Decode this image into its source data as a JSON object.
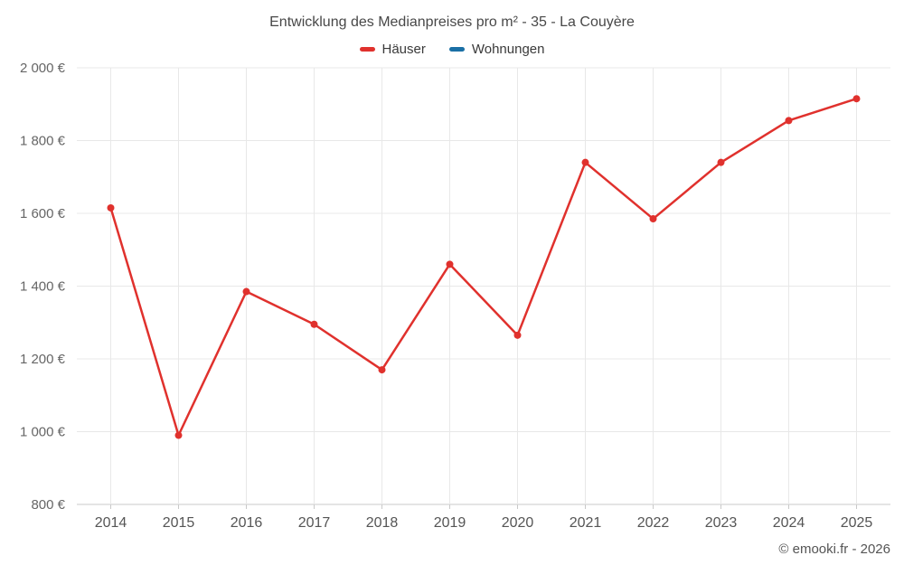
{
  "title": "Entwicklung des Medianpreises pro m² - 35 - La Couyère",
  "legend": [
    {
      "label": "Häuser",
      "color": "#e0312d"
    },
    {
      "label": "Wohnungen",
      "color": "#1a6fa5"
    }
  ],
  "copyright": "© emooki.fr - 2026",
  "colors": {
    "grid": "#e8e8e8",
    "axis": "#c9c9c9",
    "tick_text": "#666666",
    "year_text": "#555555"
  },
  "chart_data": {
    "type": "line",
    "title": "Entwicklung des Medianpreises pro m² - 35 - La Couyère",
    "x": [
      2014,
      2015,
      2016,
      2017,
      2018,
      2019,
      2020,
      2021,
      2022,
      2023,
      2024,
      2025
    ],
    "series": [
      {
        "name": "Häuser",
        "color": "#e0312d",
        "values": [
          1615,
          990,
          1385,
          1295,
          1170,
          1460,
          1265,
          1740,
          1585,
          1740,
          1855,
          1915
        ]
      },
      {
        "name": "Wohnungen",
        "color": "#1a6fa5",
        "values": []
      }
    ],
    "xlabel": "",
    "ylabel": "",
    "ylim": [
      800,
      2000
    ],
    "ytick_step": 200,
    "ytick_suffix": " €",
    "grid": true,
    "legend_position": "top"
  }
}
